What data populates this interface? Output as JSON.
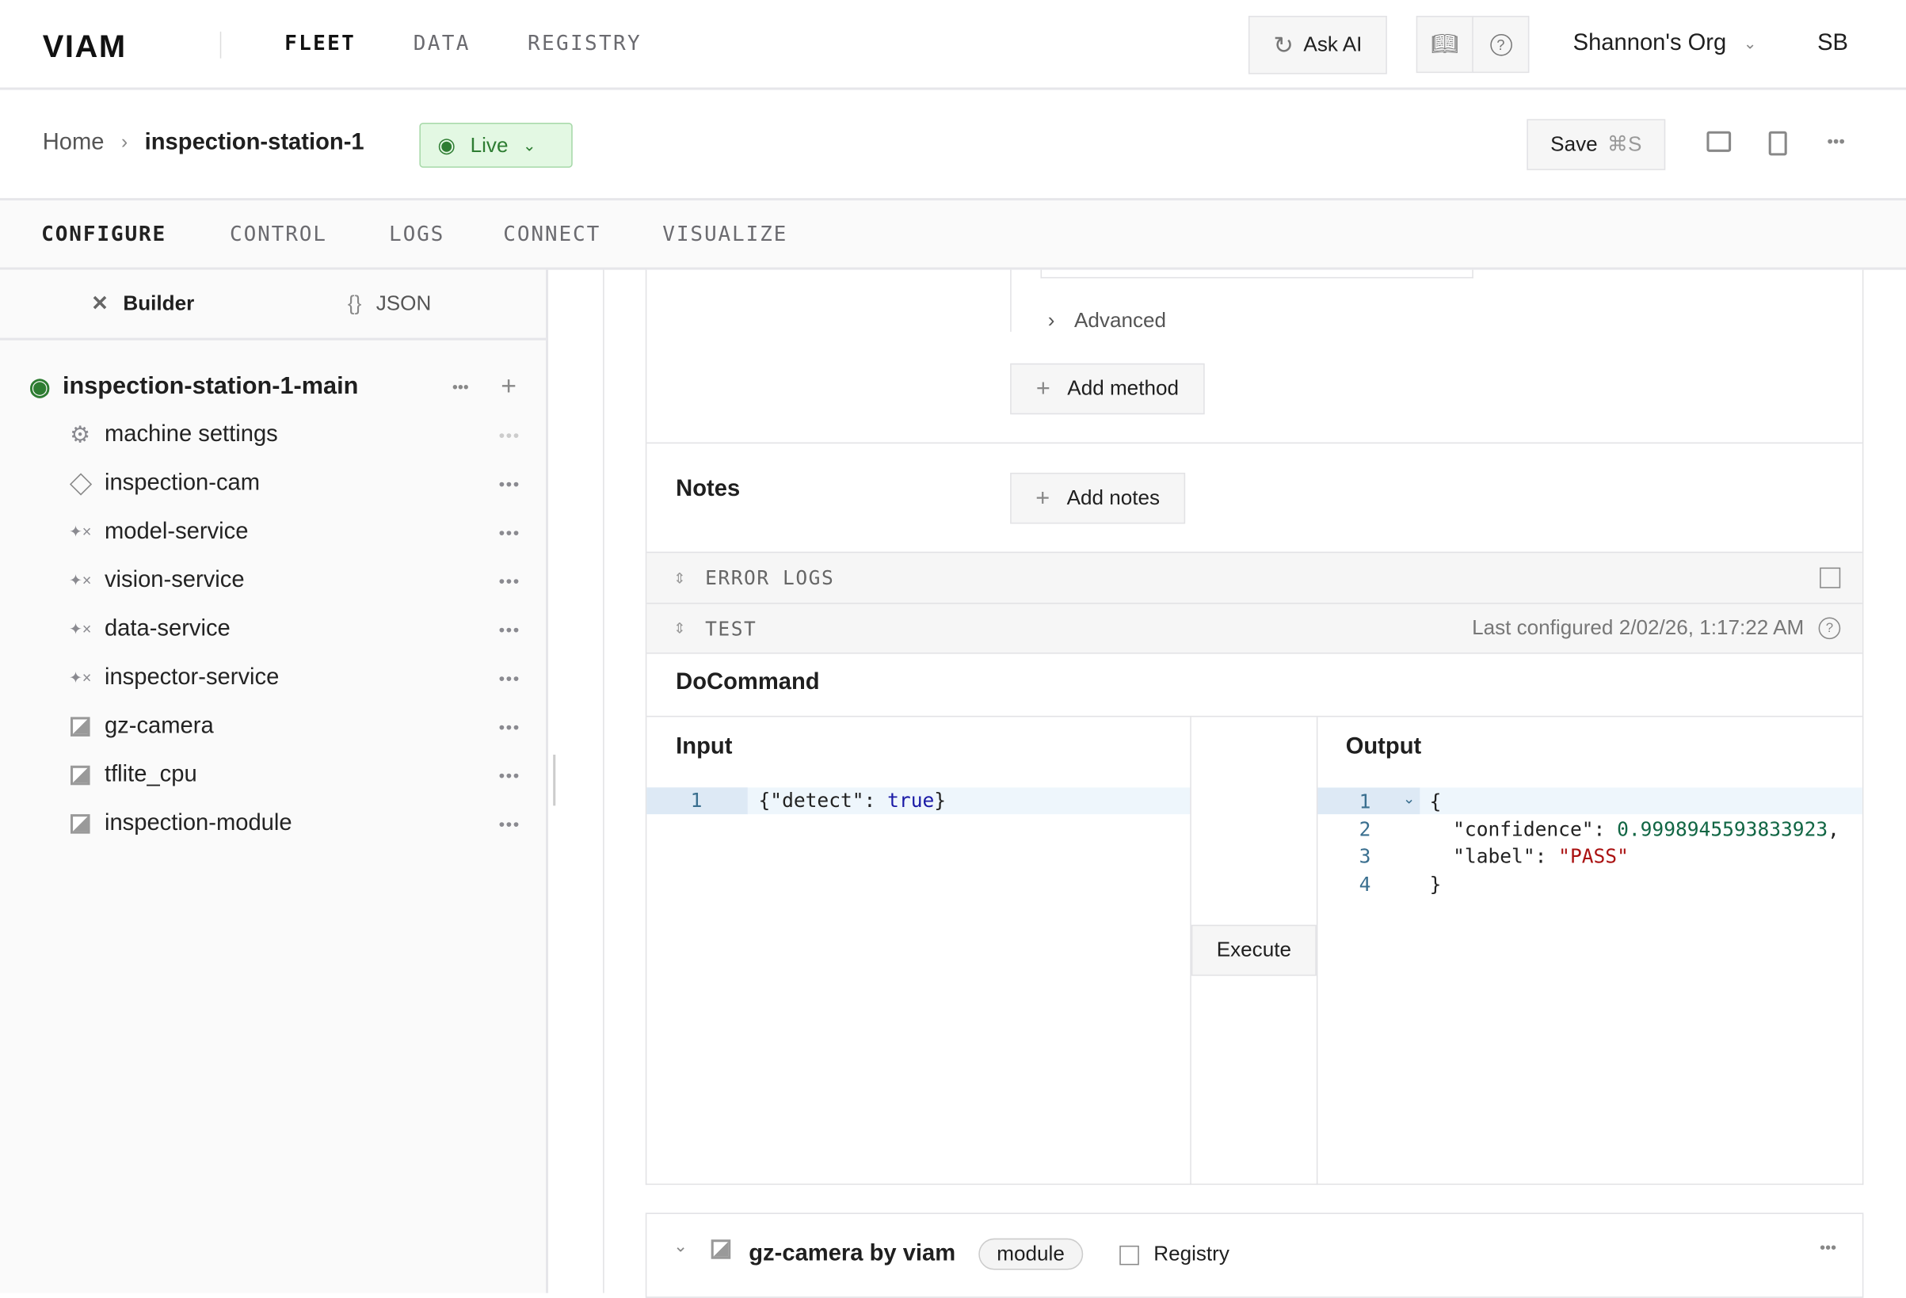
{
  "topbar": {
    "logo": "VIAM",
    "nav": [
      "FLEET",
      "DATA",
      "REGISTRY"
    ],
    "ask_ai": "Ask AI",
    "org": "Shannon's Org",
    "avatar": "SB"
  },
  "breadcrumb": {
    "home": "Home",
    "machine": "inspection-station-1",
    "status": "Live",
    "status_color": "#2e7d32"
  },
  "save": {
    "label": "Save",
    "shortcut": "⌘S"
  },
  "tabs": [
    "CONFIGURE",
    "CONTROL",
    "LOGS",
    "CONNECT",
    "VISUALIZE"
  ],
  "sidebar": {
    "modes": [
      "Builder",
      "JSON"
    ],
    "root": "inspection-station-1-main",
    "items": [
      {
        "label": "machine settings",
        "icon": "gear-icon"
      },
      {
        "label": "inspection-cam",
        "icon": "diamond-icon"
      },
      {
        "label": "model-service",
        "icon": "sparkle-icon"
      },
      {
        "label": "vision-service",
        "icon": "sparkle-icon"
      },
      {
        "label": "data-service",
        "icon": "sparkle-icon"
      },
      {
        "label": "inspector-service",
        "icon": "sparkle-icon"
      },
      {
        "label": "gz-camera",
        "icon": "module-icon"
      },
      {
        "label": "tflite_cpu",
        "icon": "module-icon"
      },
      {
        "label": "inspection-module",
        "icon": "module-icon"
      }
    ]
  },
  "panel": {
    "advanced": "Advanced",
    "add_method": "Add method",
    "notes": "Notes",
    "add_notes": "Add notes",
    "error_logs": "ERROR LOGS",
    "test": "TEST",
    "last_configured": "Last configured 2/02/26, 1:17:22 AM",
    "docommand": "DoCommand",
    "input": "Input",
    "output": "Output",
    "execute": "Execute",
    "input_code": {
      "key": "{\"detect\": ",
      "val": "true",
      "end": "}"
    },
    "output_code": {
      "l1": "{",
      "k2": "\"confidence\": ",
      "v2": "0.9998945593833923",
      "c2": ",",
      "k3": "\"label\": ",
      "v3": "\"PASS\"",
      "l4": "}"
    }
  },
  "module_card": {
    "title": "gz-camera by viam",
    "badge": "module",
    "registry": "Registry"
  }
}
